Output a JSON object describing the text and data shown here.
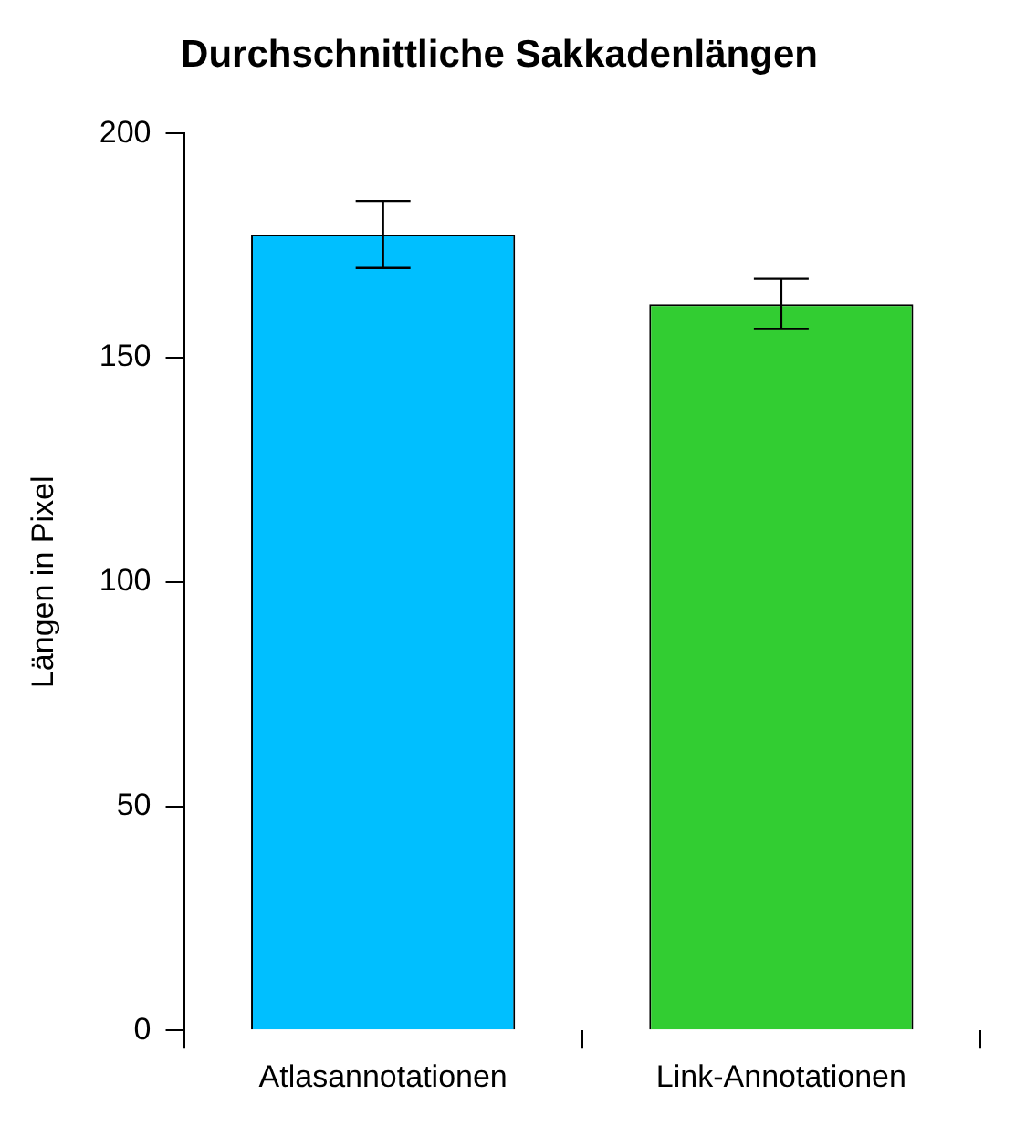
{
  "chart_data": {
    "type": "bar",
    "title": "Durchschnittliche Sakkadenlängen",
    "ylabel": "Längen in Pixel",
    "categories": [
      "Atlasannotationen",
      "Link-Annotationen"
    ],
    "values": [
      177.5,
      162
    ],
    "errors": [
      7.5,
      5.6
    ],
    "colors": [
      "#00bfff",
      "#32cd32"
    ],
    "ylim": [
      0,
      200
    ],
    "yticks": [
      0,
      50,
      100,
      150,
      200
    ],
    "grid": false,
    "legend": false
  }
}
